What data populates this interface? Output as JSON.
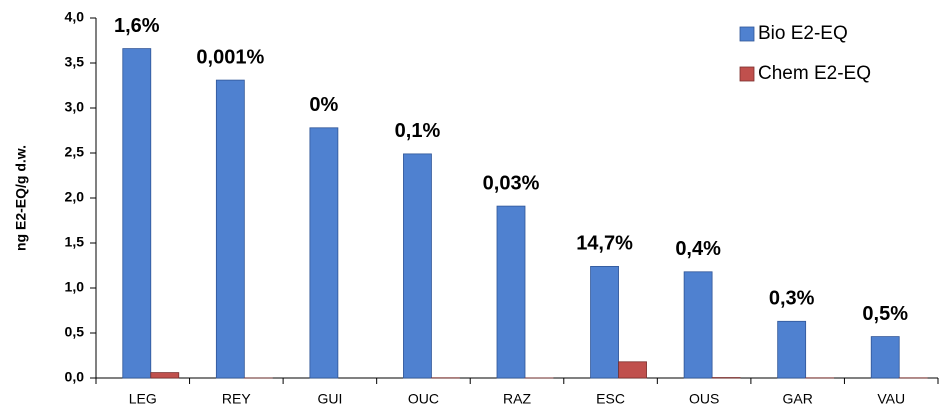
{
  "chart_data": {
    "type": "bar",
    "y_label": "ng E2-EQ/g d.w.",
    "categories": [
      "LEG",
      "REY",
      "GUI",
      "OUC",
      "RAZ",
      "ESC",
      "OUS",
      "GAR",
      "VAU"
    ],
    "series": [
      {
        "name": "Bio E2-EQ",
        "color": "#4f81d0",
        "values": [
          3.66,
          3.31,
          2.78,
          2.49,
          1.91,
          1.24,
          1.18,
          0.63,
          0.46
        ]
      },
      {
        "name": "Chem E2-EQ",
        "color": "#c0504d",
        "values": [
          0.06,
          3e-05,
          0,
          0.0025,
          0.0006,
          0.18,
          0.005,
          0.002,
          0.002
        ]
      }
    ],
    "annotations": [
      "1,6%",
      "0,001%",
      "0%",
      "0,1%",
      "0,03%",
      "14,7%",
      "0,4%",
      "0,3%",
      "0,5%"
    ],
    "ylim": [
      0,
      4
    ],
    "yticks": [
      {
        "value": 0,
        "label": "0,0"
      },
      {
        "value": 0.5,
        "label": "0,5"
      },
      {
        "value": 1,
        "label": "1,0"
      },
      {
        "value": 1.5,
        "label": "1,5"
      },
      {
        "value": 2,
        "label": "2,0"
      },
      {
        "value": 2.5,
        "label": "2,5"
      },
      {
        "value": 3,
        "label": "3,0"
      },
      {
        "value": 3.5,
        "label": "3,5"
      },
      {
        "value": 4,
        "label": "4,0"
      }
    ],
    "legend": "top-right"
  }
}
